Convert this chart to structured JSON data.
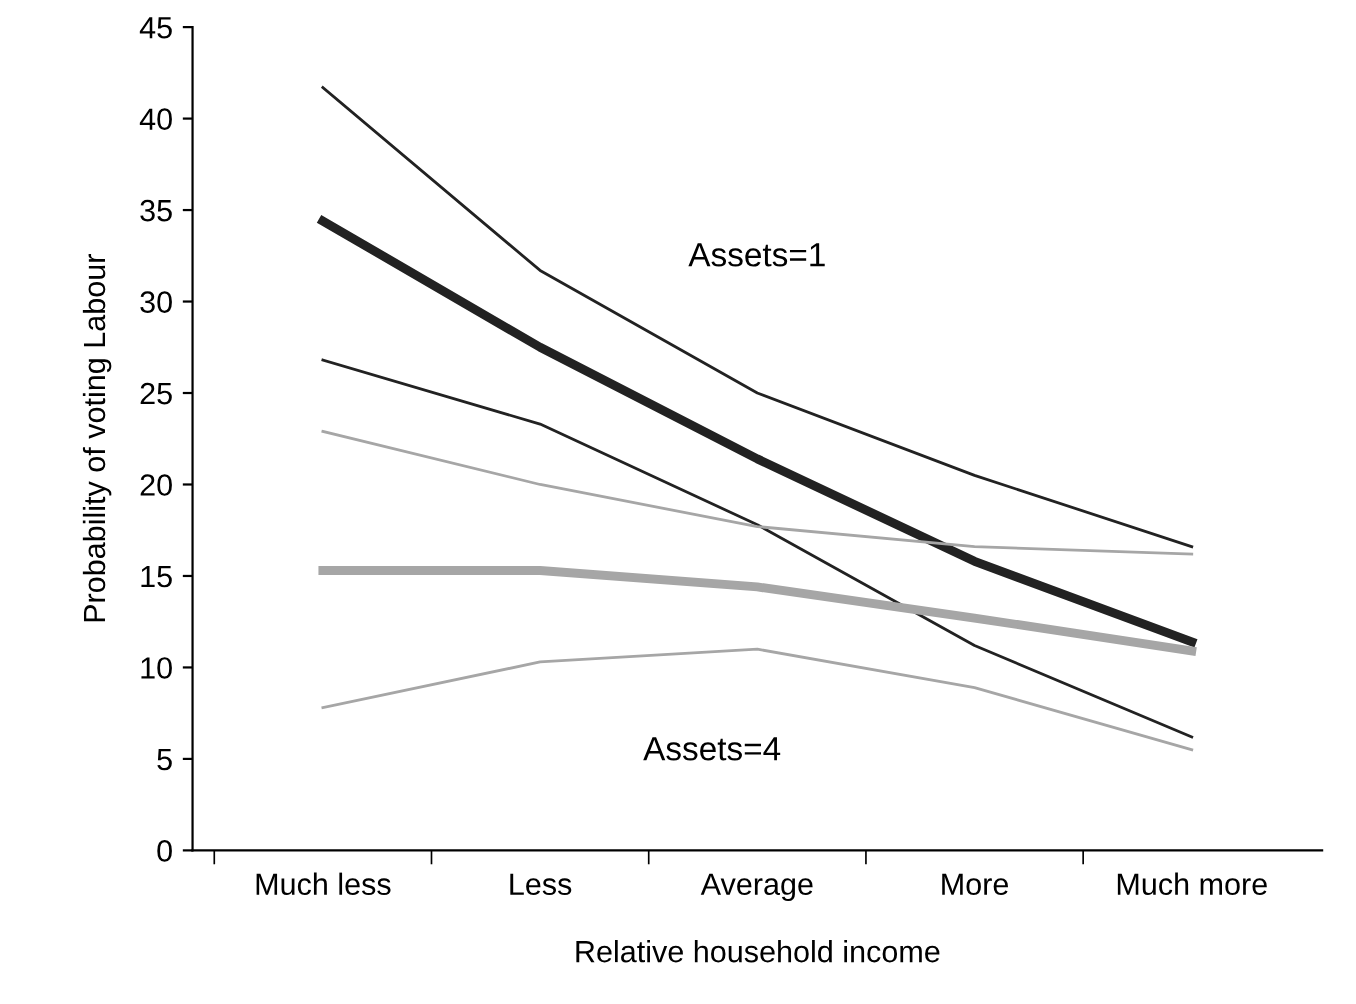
{
  "chart_data": {
    "type": "line",
    "xlabel": "Relative household income",
    "ylabel": "Probability of voting Labour",
    "categories": [
      "Much less",
      "Less",
      "Average",
      "More",
      "Much more"
    ],
    "series": [
      {
        "color": "#222222",
        "values": [
          41.7,
          31.7,
          25.0,
          20.5,
          16.6
        ]
      },
      {
        "color": "#222222",
        "values": [
          34.4,
          27.5,
          21.4,
          15.8,
          11.4
        ]
      },
      {
        "color": "#222222",
        "values": [
          26.8,
          23.3,
          17.8,
          11.2,
          6.2
        ]
      },
      {
        "color": "#a6a6a6",
        "values": [
          22.9,
          20.0,
          17.7,
          16.6,
          16.2
        ]
      },
      {
        "color": "#a6a6a6",
        "values": [
          15.3,
          15.3,
          14.4,
          12.7,
          10.9
        ]
      },
      {
        "color": "#a6a6a6",
        "values": [
          7.8,
          10.3,
          11.0,
          8.9,
          5.5
        ]
      }
    ],
    "annotations": [
      "Assets=1",
      "Assets=4"
    ],
    "ylim": [
      0,
      45
    ],
    "yticks": [
      0,
      5,
      10,
      15,
      20,
      25,
      30,
      35,
      40,
      45
    ],
    "grid": false,
    "legend": false,
    "marker": "none"
  }
}
